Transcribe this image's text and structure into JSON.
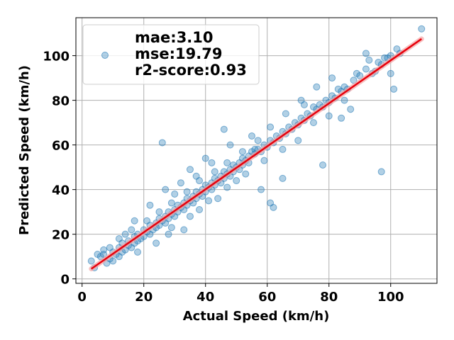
{
  "chart_data": {
    "type": "scatter",
    "title": "",
    "xlabel": "Actual Speed (km/h)",
    "ylabel": "Predicted Speed (km/h)",
    "xlim": [
      -2,
      115
    ],
    "ylim": [
      -2,
      117
    ],
    "xticks": [
      "0",
      "20",
      "40",
      "60",
      "80",
      "100"
    ],
    "yticks": [
      "0",
      "20",
      "40",
      "60",
      "80",
      "100"
    ],
    "grid": true,
    "legend_position": "top-left",
    "legend_lines": [
      "mae:3.10",
      "mse:19.79",
      "r2-score:0.93"
    ],
    "point_color": "#1f77b4",
    "fit_line_color": "#e8000b",
    "fit_line": {
      "x": [
        3,
        110
      ],
      "y": [
        4.5,
        107.5
      ]
    },
    "points": [
      [
        3,
        8
      ],
      [
        4,
        5
      ],
      [
        5,
        11
      ],
      [
        6,
        10
      ],
      [
        7,
        13
      ],
      [
        8,
        7
      ],
      [
        9,
        9
      ],
      [
        10,
        12
      ],
      [
        10,
        8
      ],
      [
        11,
        11
      ],
      [
        12,
        14
      ],
      [
        12,
        10
      ],
      [
        13,
        16
      ],
      [
        13,
        12
      ],
      [
        14,
        13
      ],
      [
        15,
        17
      ],
      [
        15,
        15
      ],
      [
        16,
        14
      ],
      [
        17,
        19
      ],
      [
        17,
        16
      ],
      [
        18,
        20
      ],
      [
        18,
        17
      ],
      [
        19,
        18
      ],
      [
        20,
        22
      ],
      [
        20,
        19
      ],
      [
        21,
        21
      ],
      [
        22,
        24
      ],
      [
        22,
        20
      ],
      [
        23,
        22
      ],
      [
        24,
        25
      ],
      [
        24,
        23
      ],
      [
        25,
        27
      ],
      [
        25,
        24
      ],
      [
        26,
        26
      ],
      [
        27,
        28
      ],
      [
        27,
        25
      ],
      [
        28,
        30
      ],
      [
        28,
        27
      ],
      [
        29,
        29
      ],
      [
        30,
        31
      ],
      [
        30,
        28
      ],
      [
        31,
        33
      ],
      [
        31,
        30
      ],
      [
        32,
        32
      ],
      [
        33,
        34
      ],
      [
        33,
        31
      ],
      [
        34,
        36
      ],
      [
        34,
        33
      ],
      [
        35,
        35
      ],
      [
        36,
        37
      ],
      [
        36,
        34
      ],
      [
        37,
        39
      ],
      [
        37,
        36
      ],
      [
        38,
        38
      ],
      [
        39,
        40
      ],
      [
        39,
        37
      ],
      [
        40,
        42
      ],
      [
        40,
        39
      ],
      [
        41,
        41
      ],
      [
        42,
        43
      ],
      [
        42,
        40
      ],
      [
        43,
        45
      ],
      [
        43,
        42
      ],
      [
        44,
        44
      ],
      [
        45,
        46
      ],
      [
        45,
        43
      ],
      [
        46,
        48
      ],
      [
        46,
        45
      ],
      [
        47,
        47
      ],
      [
        48,
        49
      ],
      [
        48,
        46
      ],
      [
        49,
        51
      ],
      [
        49,
        48
      ],
      [
        50,
        50
      ],
      [
        51,
        52
      ],
      [
        51,
        49
      ],
      [
        52,
        54
      ],
      [
        52,
        51
      ],
      [
        53,
        53
      ],
      [
        54,
        55
      ],
      [
        54,
        52
      ],
      [
        55,
        57
      ],
      [
        56,
        56
      ],
      [
        57,
        58
      ],
      [
        58,
        57
      ],
      [
        59,
        60
      ],
      [
        60,
        59
      ],
      [
        61,
        62
      ],
      [
        62,
        61
      ],
      [
        63,
        64
      ],
      [
        64,
        63
      ],
      [
        65,
        66
      ],
      [
        66,
        65
      ],
      [
        67,
        68
      ],
      [
        68,
        67
      ],
      [
        69,
        70
      ],
      [
        70,
        69
      ],
      [
        71,
        72
      ],
      [
        72,
        71
      ],
      [
        73,
        74
      ],
      [
        74,
        73
      ],
      [
        75,
        77
      ],
      [
        76,
        76
      ],
      [
        77,
        78
      ],
      [
        78,
        77
      ],
      [
        79,
        80
      ],
      [
        80,
        79
      ],
      [
        81,
        82
      ],
      [
        82,
        81
      ],
      [
        83,
        85
      ],
      [
        84,
        84
      ],
      [
        85,
        86
      ],
      [
        86,
        85
      ],
      [
        88,
        89
      ],
      [
        90,
        91
      ],
      [
        92,
        94
      ],
      [
        94,
        92
      ],
      [
        96,
        97
      ],
      [
        98,
        99
      ],
      [
        100,
        100
      ],
      [
        102,
        103
      ],
      [
        110,
        112
      ],
      [
        26,
        61
      ],
      [
        97,
        48
      ],
      [
        78,
        51
      ],
      [
        62,
        32
      ],
      [
        65,
        45
      ],
      [
        61,
        34
      ],
      [
        58,
        40
      ],
      [
        101,
        85
      ],
      [
        92,
        101
      ],
      [
        95,
        93
      ],
      [
        99,
        99
      ],
      [
        87,
        76
      ],
      [
        84,
        72
      ],
      [
        72,
        78
      ],
      [
        55,
        64
      ],
      [
        46,
        67
      ],
      [
        40,
        54
      ],
      [
        35,
        49
      ],
      [
        30,
        38
      ],
      [
        28,
        20
      ],
      [
        33,
        22
      ],
      [
        38,
        31
      ],
      [
        44,
        36
      ],
      [
        50,
        44
      ],
      [
        56,
        58
      ],
      [
        48,
        60
      ],
      [
        42,
        52
      ],
      [
        37,
        46
      ],
      [
        32,
        43
      ],
      [
        27,
        40
      ],
      [
        22,
        33
      ],
      [
        17,
        26
      ],
      [
        14,
        20
      ],
      [
        18,
        12
      ],
      [
        24,
        16
      ],
      [
        29,
        23
      ],
      [
        35,
        28
      ],
      [
        41,
        35
      ],
      [
        47,
        41
      ],
      [
        53,
        47
      ],
      [
        59,
        53
      ],
      [
        65,
        58
      ],
      [
        70,
        62
      ],
      [
        75,
        70
      ],
      [
        80,
        73
      ],
      [
        85,
        80
      ],
      [
        89,
        92
      ],
      [
        93,
        98
      ],
      [
        97,
        96
      ],
      [
        100,
        92
      ],
      [
        103,
        101
      ],
      [
        81,
        90
      ],
      [
        76,
        86
      ],
      [
        71,
        80
      ],
      [
        66,
        74
      ],
      [
        61,
        68
      ],
      [
        57,
        62
      ],
      [
        52,
        57
      ],
      [
        47,
        52
      ],
      [
        43,
        48
      ],
      [
        38,
        44
      ],
      [
        34,
        39
      ],
      [
        29,
        34
      ],
      [
        25,
        30
      ],
      [
        21,
        26
      ],
      [
        16,
        22
      ],
      [
        12,
        18
      ],
      [
        9,
        14
      ],
      [
        7,
        11
      ]
    ]
  }
}
